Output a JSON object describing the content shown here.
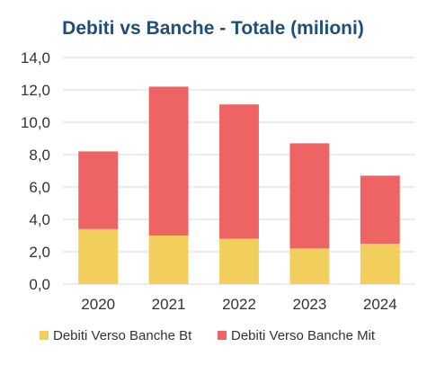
{
  "chart_data": {
    "type": "bar",
    "stacked": true,
    "title": "Debiti vs Banche - Totale (milioni)",
    "xlabel": "",
    "ylabel": "",
    "categories": [
      "2020",
      "2021",
      "2022",
      "2023",
      "2024"
    ],
    "ylim": [
      0,
      14
    ],
    "yticks": [
      "0,0",
      "2,0",
      "4,0",
      "6,0",
      "8,0",
      "10,0",
      "12,0",
      "14,0"
    ],
    "grid": true,
    "legend_position": "bottom",
    "series": [
      {
        "name": "Debiti Verso Banche Bt",
        "values": [
          3.4,
          3.0,
          2.8,
          2.2,
          2.5
        ],
        "color": "#F2CE5C"
      },
      {
        "name": "Debiti Verso Banche Mit",
        "values": [
          4.8,
          9.2,
          8.3,
          6.5,
          4.2
        ],
        "color": "#EE6464"
      }
    ],
    "title_color": "#1F4E79",
    "grid_color": "#D9D9D9"
  }
}
